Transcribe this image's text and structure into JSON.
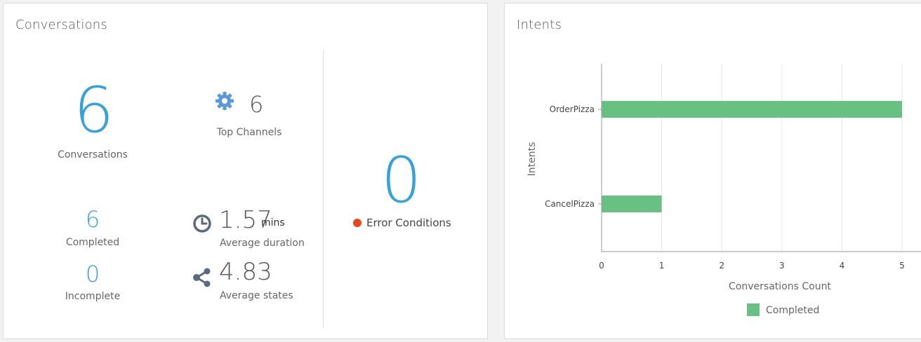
{
  "conversations_card": {
    "title": "Conversations",
    "total": {
      "value": "6",
      "label": "Conversations"
    },
    "top_channels": {
      "value": "6",
      "label": "Top Channels",
      "icon": "gear-icon"
    },
    "completed": {
      "value": "6",
      "label": "Completed"
    },
    "incomplete": {
      "value": "0",
      "label": "Incomplete"
    },
    "average_duration": {
      "value": "1.57",
      "unit": "mins",
      "label": "Average duration",
      "icon": "clock-icon"
    },
    "average_states": {
      "value": "4.83",
      "label": "Average states",
      "icon": "share-nodes-icon"
    },
    "errors": {
      "value": "0",
      "label": "Error Conditions",
      "dot_color": "#e8471c"
    },
    "accent_color": "#3aa0d8"
  },
  "intents_card": {
    "title": "Intents"
  },
  "chart_data": {
    "type": "bar",
    "orientation": "horizontal",
    "categories": [
      "OrderPizza",
      "CancelPizza"
    ],
    "series": [
      {
        "name": "Completed",
        "values": [
          5,
          1
        ],
        "color": "#68c182"
      }
    ],
    "xlabel": "Conversations Count",
    "ylabel": "Intents",
    "xlim": [
      0,
      5
    ],
    "xticks": [
      "0",
      "1",
      "2",
      "3",
      "4",
      "5"
    ],
    "grid": true,
    "legend": "bottom"
  }
}
